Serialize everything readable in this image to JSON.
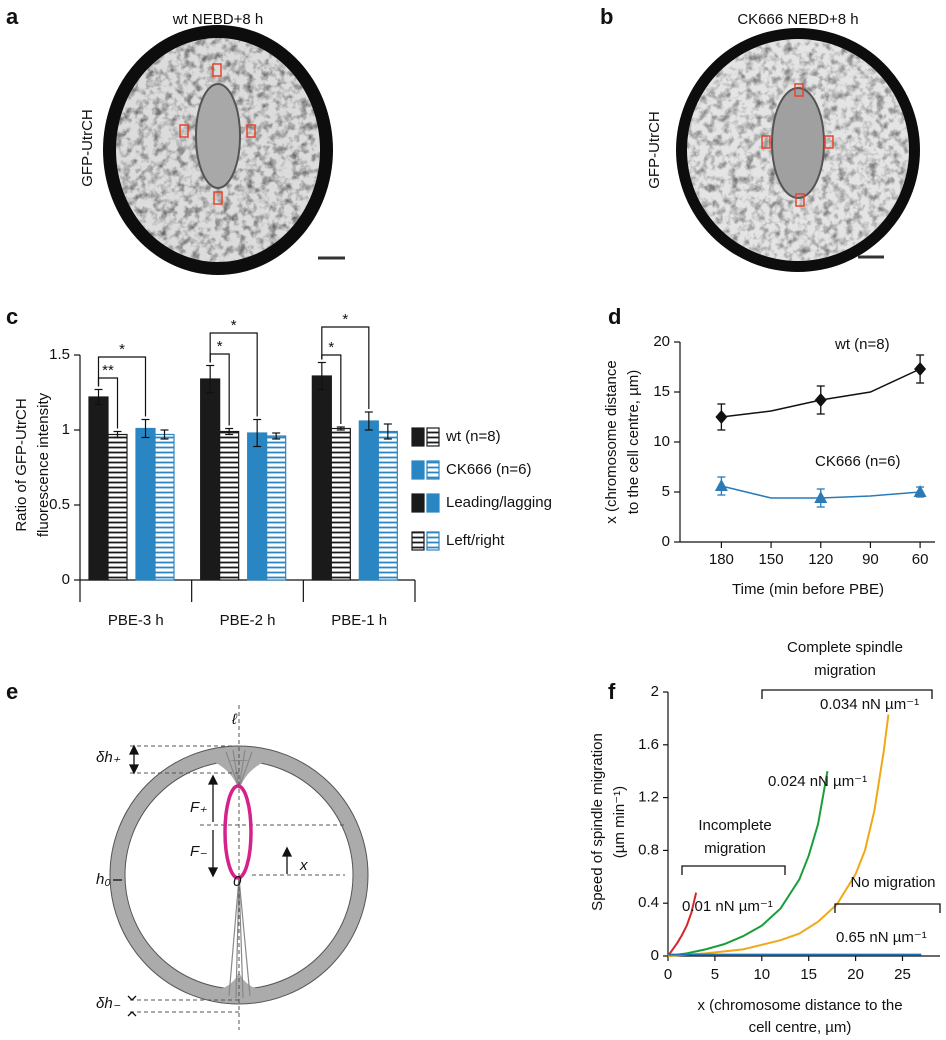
{
  "panel_a": {
    "letter": "a",
    "title": "wt NEBD+8 h",
    "ylabel": "GFP-UtrCH"
  },
  "panel_b": {
    "letter": "b",
    "title": "CK666 NEBD+8 h",
    "ylabel": "GFP-UtrCH"
  },
  "panel_e": {
    "letter": "e",
    "labels": [
      "ℓ",
      "δh₊",
      "F₊",
      "F₋",
      "h₀",
      "0",
      "x",
      "δh₋"
    ]
  },
  "chart_data": [
    {
      "type": "bar",
      "panel": "c",
      "ylabel": [
        "Ratio of GFP-UtrCH",
        "fluorescence intensity"
      ],
      "categories": [
        "PBE-3 h",
        "PBE-2 h",
        "PBE-1 h"
      ],
      "series": [
        {
          "color": "#1a1a1a",
          "hatched": false,
          "values": [
            1.22,
            1.34,
            1.36
          ],
          "errors": [
            0.05,
            0.09,
            0.09
          ]
        },
        {
          "color": "#1a1a1a",
          "hatched": true,
          "values": [
            0.97,
            0.99,
            1.01
          ],
          "errors": [
            0.02,
            0.02,
            0.01
          ]
        },
        {
          "color": "#2a86c2",
          "hatched": false,
          "values": [
            1.01,
            0.98,
            1.06
          ],
          "errors": [
            0.06,
            0.09,
            0.06
          ]
        },
        {
          "color": "#2a86c2",
          "hatched": true,
          "values": [
            0.97,
            0.96,
            0.99
          ],
          "errors": [
            0.03,
            0.02,
            0.05
          ]
        }
      ],
      "legend": [
        "wt (n=8)",
        "CK666 (n=6)",
        "Leading/lagging",
        "Left/right"
      ],
      "annotations": [
        "**",
        "*",
        "*",
        "*",
        "*",
        "*"
      ],
      "ylim": [
        0,
        1.5
      ],
      "yticks": [
        0,
        0.5,
        1,
        1.5
      ]
    },
    {
      "type": "line",
      "panel": "d",
      "xlabel": "Time (min before PBE)",
      "ylabel": [
        "x (chromosome distance",
        "to the cell centre, µm)"
      ],
      "x": [
        180,
        150,
        120,
        90,
        60
      ],
      "series": [
        {
          "name": "wt (n=8)",
          "color": "#111111",
          "marker": "diamond",
          "values": [
            12.5,
            13.1,
            14.2,
            15.0,
            17.3
          ],
          "errors": [
            1.3,
            null,
            1.4,
            null,
            1.4
          ]
        },
        {
          "name": "CK666 (n=6)",
          "color": "#2a7ab8",
          "marker": "triangle",
          "values": [
            5.6,
            4.4,
            4.4,
            4.6,
            5.0
          ],
          "errors": [
            0.9,
            null,
            0.9,
            null,
            0.5
          ]
        }
      ],
      "xlim": [
        205,
        51
      ],
      "xticks": [
        180,
        150,
        120,
        90,
        60
      ],
      "ylim": [
        0,
        20
      ],
      "yticks": [
        0,
        5,
        10,
        15,
        20
      ]
    },
    {
      "type": "line",
      "panel": "f",
      "xlabel": [
        "x (chromosome distance to the",
        "cell centre, µm)"
      ],
      "ylabel": [
        "Speed of spindle migration",
        "(µm min⁻¹)"
      ],
      "series": [
        {
          "name": "0.01 nN µm⁻¹",
          "color": "#d62728",
          "x": [
            0,
            0.5,
            1,
            1.5,
            2,
            2.5,
            3
          ],
          "values": [
            0,
            0.05,
            0.1,
            0.16,
            0.23,
            0.33,
            0.48
          ]
        },
        {
          "name": "0.024 nN µm⁻¹",
          "color": "#1a9e3a",
          "x": [
            0,
            2,
            4,
            6,
            8,
            10,
            12,
            14,
            15,
            16,
            17
          ],
          "values": [
            0,
            0.02,
            0.05,
            0.09,
            0.15,
            0.23,
            0.36,
            0.58,
            0.76,
            1.0,
            1.4
          ]
        },
        {
          "name": "0.034 nN µm⁻¹",
          "color": "#f0a818",
          "x": [
            0,
            4,
            8,
            12,
            14,
            16,
            18,
            20,
            21,
            22,
            23,
            23.5
          ],
          "values": [
            0,
            0.02,
            0.05,
            0.12,
            0.17,
            0.26,
            0.39,
            0.62,
            0.8,
            1.1,
            1.55,
            1.83
          ]
        },
        {
          "name": "0.65 nN µm⁻¹",
          "color": "#1f73b4",
          "x": [
            0,
            5,
            10,
            15,
            20,
            25,
            27
          ],
          "values": [
            0.01,
            0.01,
            0.01,
            0.01,
            0.01,
            0.01,
            0.01
          ]
        }
      ],
      "annotations": [
        [
          "Complete spindle",
          "migration"
        ],
        [
          "Incomplete",
          "migration"
        ],
        [
          "No migration"
        ]
      ],
      "xlim": [
        0,
        29
      ],
      "xticks": [
        0,
        5,
        10,
        15,
        20,
        25
      ],
      "ylim": [
        0,
        2
      ],
      "yticks": [
        0,
        0.4,
        0.8,
        1.2,
        1.6,
        2
      ]
    }
  ]
}
